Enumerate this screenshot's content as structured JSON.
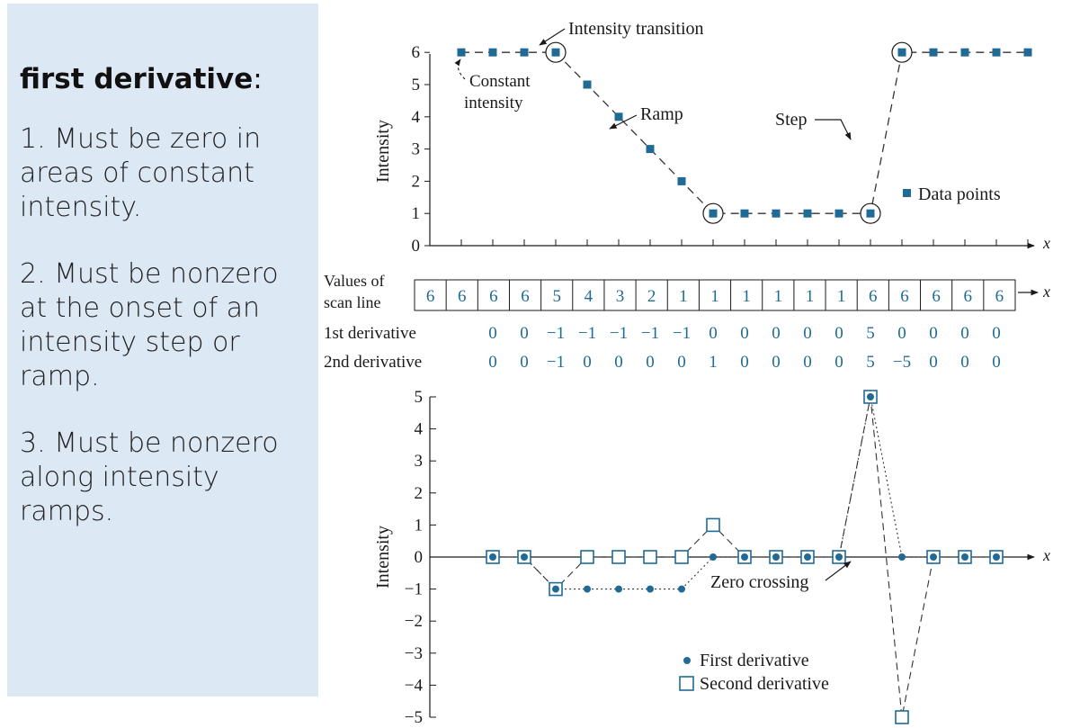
{
  "panel": {
    "heading": "first derivative",
    "heading_suffix": ":",
    "items": [
      "1. Must be zero in areas of constant intensity.",
      "2. Must be nonzero at the onset of an intensity step or ramp.",
      "3. Must be nonzero along intensity ramps."
    ]
  },
  "colors": {
    "data_points": "#1f6b96",
    "panel_background": "#dde8f5",
    "values": "#1f6b96"
  },
  "chart_data": [
    {
      "type": "line",
      "ylabel": "Intensity",
      "xlabel": "x",
      "ylim": [
        0,
        6
      ],
      "yticks": [
        0,
        1,
        2,
        3,
        4,
        5,
        6
      ],
      "x": [
        1,
        2,
        3,
        4,
        5,
        6,
        7,
        8,
        9,
        10,
        11,
        12,
        13,
        14,
        15,
        16,
        17,
        18,
        19
      ],
      "series": [
        {
          "name": "Data points",
          "values": [
            6,
            6,
            6,
            6,
            5,
            4,
            3,
            2,
            1,
            1,
            1,
            1,
            1,
            1,
            6,
            6,
            6,
            6,
            6
          ],
          "marker": "square"
        }
      ],
      "circled_x": [
        4,
        9,
        14,
        15
      ],
      "legend": "Data points",
      "annotations": {
        "transition": "Intensity transition",
        "constant_1": "Constant",
        "constant_2": "intensity",
        "ramp": "Ramp",
        "step": "Step"
      }
    },
    {
      "type": "table",
      "rows": [
        {
          "label_1": "Values of",
          "label_2": "scan line",
          "values": [
            "6",
            "6",
            "6",
            "6",
            "5",
            "4",
            "3",
            "2",
            "1",
            "1",
            "1",
            "1",
            "1",
            "1",
            "6",
            "6",
            "6",
            "6",
            "6"
          ]
        },
        {
          "label": "1st derivative",
          "values": [
            "0",
            "0",
            "−1",
            "−1",
            "−1",
            "−1",
            "−1",
            "0",
            "0",
            "0",
            "0",
            "0",
            "5",
            "0",
            "0",
            "0",
            "0"
          ]
        },
        {
          "label": "2nd derivative",
          "values": [
            "0",
            "0",
            "−1",
            "0",
            "0",
            "0",
            "0",
            "1",
            "0",
            "0",
            "0",
            "0",
            "5",
            "−5",
            "0",
            "0",
            "0"
          ]
        }
      ],
      "xlabel": "x"
    },
    {
      "type": "scatter",
      "ylabel": "Intensity",
      "xlabel": "x",
      "ylim": [
        -5,
        5
      ],
      "yticks": [
        -5,
        -4,
        -3,
        -2,
        -1,
        0,
        1,
        2,
        3,
        4,
        5
      ],
      "x": [
        2,
        3,
        4,
        5,
        6,
        7,
        8,
        9,
        10,
        11,
        12,
        13,
        14,
        15,
        16,
        17,
        18
      ],
      "series": [
        {
          "name": "First derivative",
          "values": [
            0,
            0,
            -1,
            -1,
            -1,
            -1,
            -1,
            0,
            0,
            0,
            0,
            0,
            5,
            0,
            0,
            0,
            0
          ],
          "marker": "dot"
        },
        {
          "name": "Second derivative",
          "values": [
            0,
            0,
            -1,
            0,
            0,
            0,
            0,
            1,
            0,
            0,
            0,
            0,
            5,
            -5,
            0,
            0,
            0
          ],
          "marker": "open-square"
        }
      ],
      "annotations": {
        "zero_crossing": "Zero crossing"
      },
      "legend": "bottom-center"
    }
  ]
}
